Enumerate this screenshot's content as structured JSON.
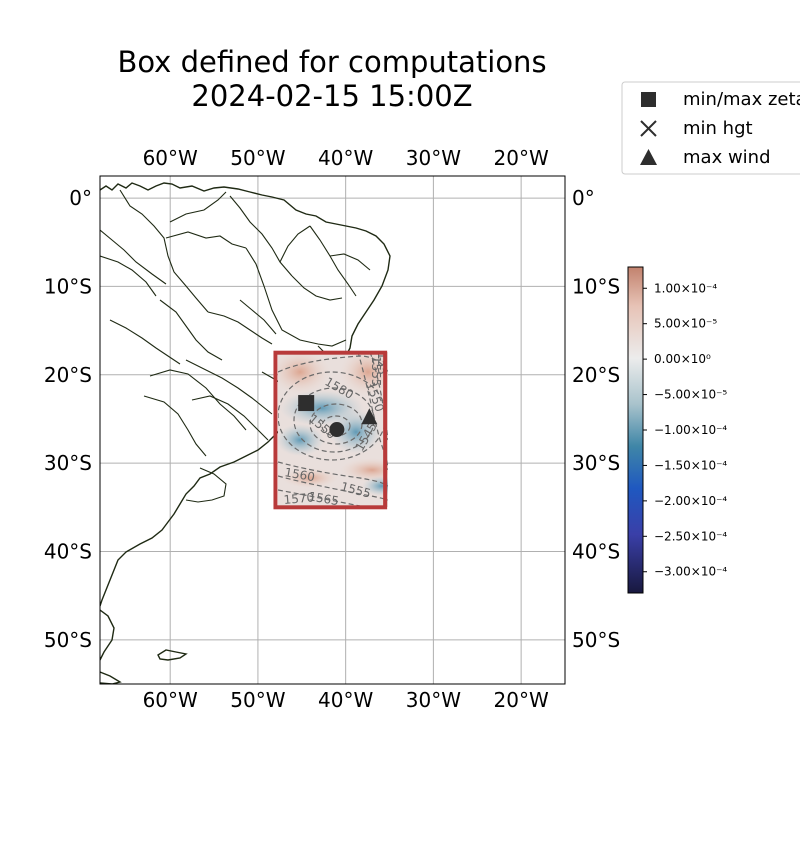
{
  "title": {
    "line1": "Box defined for computations",
    "line2": "2024-02-15 15:00Z"
  },
  "map": {
    "lon_range": [
      -68,
      -15
    ],
    "lat_range": [
      -55,
      2.5
    ],
    "lon_ticks": [
      {
        "value": -60,
        "label": "60°W"
      },
      {
        "value": -50,
        "label": "50°W"
      },
      {
        "value": -40,
        "label": "40°W"
      },
      {
        "value": -30,
        "label": "30°W"
      },
      {
        "value": -20,
        "label": "20°W"
      }
    ],
    "lat_ticks": [
      {
        "value": 0,
        "label": "0°"
      },
      {
        "value": -10,
        "label": "10°S"
      },
      {
        "value": -20,
        "label": "20°S"
      },
      {
        "value": -30,
        "label": "30°S"
      },
      {
        "value": -40,
        "label": "40°S"
      },
      {
        "value": -50,
        "label": "50°S"
      }
    ],
    "grid": true,
    "box": {
      "lon_min": -48,
      "lon_max": -35.5,
      "lat_min": -35,
      "lat_max": -17.5,
      "color": "#b83a3a"
    },
    "contour_labels": [
      "1555",
      "1550",
      "1550",
      "1545",
      "1560",
      "1555",
      "1565",
      "1570",
      "1580",
      "155"
    ],
    "markers": {
      "min_max_zeta": {
        "lon": -44.5,
        "lat": -23.2
      },
      "max_wind": {
        "lon": -37.3,
        "lat": -24.8
      },
      "system_center": {
        "lon": -41,
        "lat": -26.2
      }
    }
  },
  "legend": {
    "items": [
      {
        "symbol": "square",
        "label": "min/max zeta"
      },
      {
        "symbol": "cross",
        "label": "min hgt"
      },
      {
        "symbol": "triangle",
        "label": "max wind"
      }
    ]
  },
  "colorbar": {
    "range": [
      -0.00033,
      0.00013
    ],
    "ticks": [
      {
        "value": 0.0001,
        "label": "1.00×10⁻⁴"
      },
      {
        "value": 5e-05,
        "label": "5.00×10⁻⁵"
      },
      {
        "value": 0,
        "label": "0.00×10⁰"
      },
      {
        "value": -5e-05,
        "label": "−5.00×10⁻⁵"
      },
      {
        "value": -0.0001,
        "label": "−1.00×10⁻⁴"
      },
      {
        "value": -0.00015,
        "label": "−1.50×10⁻⁴"
      },
      {
        "value": -0.0002,
        "label": "−2.00×10⁻⁴"
      },
      {
        "value": -0.00025,
        "label": "−2.50×10⁻⁴"
      },
      {
        "value": -0.0003,
        "label": "−3.00×10⁻⁴"
      }
    ]
  }
}
